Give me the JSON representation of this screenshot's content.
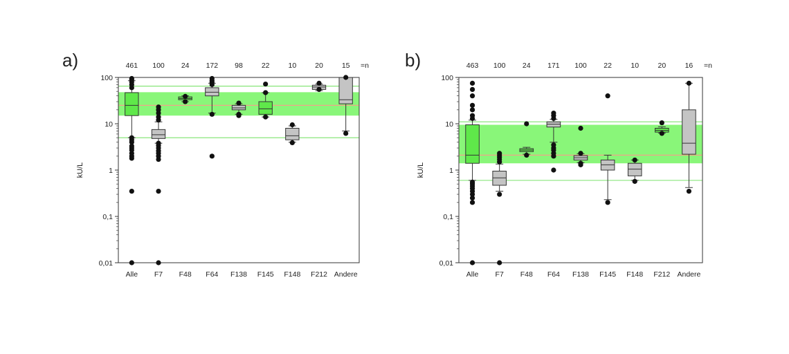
{
  "chart_data": [
    {
      "type": "box",
      "panel_label": "a)",
      "ylabel": "kU/L",
      "yscale": "log",
      "ylim": [
        0.01,
        100
      ],
      "yticks": [
        "0,01",
        "0,1",
        "1",
        "10",
        "100"
      ],
      "n_suffix": "=n",
      "categories": [
        "Alle",
        "F7",
        "F48",
        "F64",
        "F138",
        "F145",
        "F148",
        "F212",
        "Andere"
      ],
      "n": [
        "461",
        "100",
        "24",
        "172",
        "98",
        "22",
        "10",
        "20",
        "15"
      ],
      "band": {
        "low": 15,
        "high": 48,
        "color": "#7cf56a"
      },
      "median_line": 25,
      "ref_lines": [
        5,
        65
      ],
      "boxes": [
        {
          "q1": 15,
          "med": 25,
          "q3": 47,
          "wlo": 5,
          "whi": 85,
          "color": "green",
          "outliers": [
            0.01,
            0.35,
            1.8,
            2,
            2.3,
            2.7,
            3,
            3.3,
            4,
            4.5,
            5,
            60,
            70,
            80,
            90,
            95
          ]
        },
        {
          "q1": 4.8,
          "med": 5.8,
          "q3": 7.5,
          "wlo": 3.8,
          "whi": 11,
          "color": "gray",
          "outliers": [
            0.01,
            0.35,
            1.7,
            2,
            2.3,
            2.6,
            3,
            3.4,
            3.8,
            12,
            14,
            17,
            20,
            23
          ]
        },
        {
          "q1": 33,
          "med": 35,
          "q3": 38,
          "wlo": 30,
          "whi": 40,
          "color": "green",
          "outliers": [
            30,
            39
          ]
        },
        {
          "q1": 40,
          "med": 48,
          "q3": 60,
          "wlo": 17,
          "whi": 75,
          "color": "gray",
          "outliers": [
            2,
            16,
            70,
            78,
            85,
            95
          ]
        },
        {
          "q1": 20,
          "med": 22,
          "q3": 25,
          "wlo": 16,
          "whi": 27,
          "color": "gray",
          "outliers": [
            15,
            16,
            28
          ]
        },
        {
          "q1": 16,
          "med": 21,
          "q3": 30,
          "wlo": 14,
          "whi": 47,
          "color": "green",
          "outliers": [
            14,
            47,
            72
          ]
        },
        {
          "q1": 4.5,
          "med": 5.5,
          "q3": 8,
          "wlo": 4,
          "whi": 9,
          "color": "gray",
          "outliers": [
            3.9,
            9.5
          ]
        },
        {
          "q1": 55,
          "med": 62,
          "q3": 68,
          "wlo": 52,
          "whi": 72,
          "color": "gray",
          "outliers": [
            55,
            75
          ]
        },
        {
          "q1": 27,
          "med": 33,
          "q3": 100,
          "wlo": 7,
          "whi": 100,
          "color": "gray",
          "outliers": [
            6.2,
            100
          ]
        }
      ]
    },
    {
      "type": "box",
      "panel_label": "b)",
      "ylabel": "kU/L",
      "yscale": "log",
      "ylim": [
        0.01,
        100
      ],
      "yticks": [
        "0,01",
        "0,1",
        "1",
        "10",
        "100"
      ],
      "n_suffix": "=n",
      "categories": [
        "Alle",
        "F7",
        "F48",
        "F64",
        "F138",
        "F145",
        "F148",
        "F212",
        "Andere"
      ],
      "n": [
        "463",
        "100",
        "24",
        "171",
        "100",
        "22",
        "10",
        "20",
        "16"
      ],
      "band": {
        "low": 1.4,
        "high": 9.5,
        "color": "#7cf56a"
      },
      "median_line": 2.1,
      "ref_lines": [
        0.6,
        11
      ],
      "boxes": [
        {
          "q1": 1.4,
          "med": 2.1,
          "q3": 9.5,
          "wlo": 0.6,
          "whi": 12,
          "color": "green",
          "outliers": [
            0.01,
            0.2,
            0.25,
            0.3,
            0.35,
            0.4,
            0.45,
            0.5,
            0.55,
            13,
            15,
            20,
            25,
            40,
            55,
            75
          ]
        },
        {
          "q1": 0.47,
          "med": 0.68,
          "q3": 0.95,
          "wlo": 0.35,
          "whi": 1.35,
          "color": "gray",
          "outliers": [
            0.01,
            0.3,
            1.5,
            1.7,
            1.9,
            2.1,
            2.3
          ]
        },
        {
          "q1": 2.5,
          "med": 2.7,
          "q3": 2.9,
          "wlo": 2.2,
          "whi": 3.1,
          "color": "green",
          "outliers": [
            2.1,
            10
          ]
        },
        {
          "q1": 8.5,
          "med": 9.8,
          "q3": 11,
          "wlo": 4,
          "whi": 12.5,
          "color": "gray",
          "outliers": [
            1,
            2,
            2.3,
            2.7,
            3,
            3.5,
            13,
            15,
            17
          ]
        },
        {
          "q1": 1.65,
          "med": 1.85,
          "q3": 2.05,
          "wlo": 1.45,
          "whi": 2.25,
          "color": "gray",
          "outliers": [
            1.3,
            1.4,
            2.3,
            8
          ]
        },
        {
          "q1": 1,
          "med": 1.3,
          "q3": 1.65,
          "wlo": 0.23,
          "whi": 2.1,
          "color": "gray",
          "outliers": [
            0.2,
            40
          ]
        },
        {
          "q1": 0.75,
          "med": 1.05,
          "q3": 1.4,
          "wlo": 0.6,
          "whi": 1.65,
          "color": "gray",
          "outliers": [
            0.57,
            1.65
          ]
        },
        {
          "q1": 6.6,
          "med": 7.2,
          "q3": 8,
          "wlo": 6.3,
          "whi": 8.6,
          "color": "green",
          "outliers": [
            6.2,
            10.5
          ]
        },
        {
          "q1": 2.2,
          "med": 3.8,
          "q3": 20,
          "wlo": 0.42,
          "whi": 75,
          "color": "gray",
          "outliers": [
            0.35,
            75
          ]
        }
      ]
    }
  ]
}
